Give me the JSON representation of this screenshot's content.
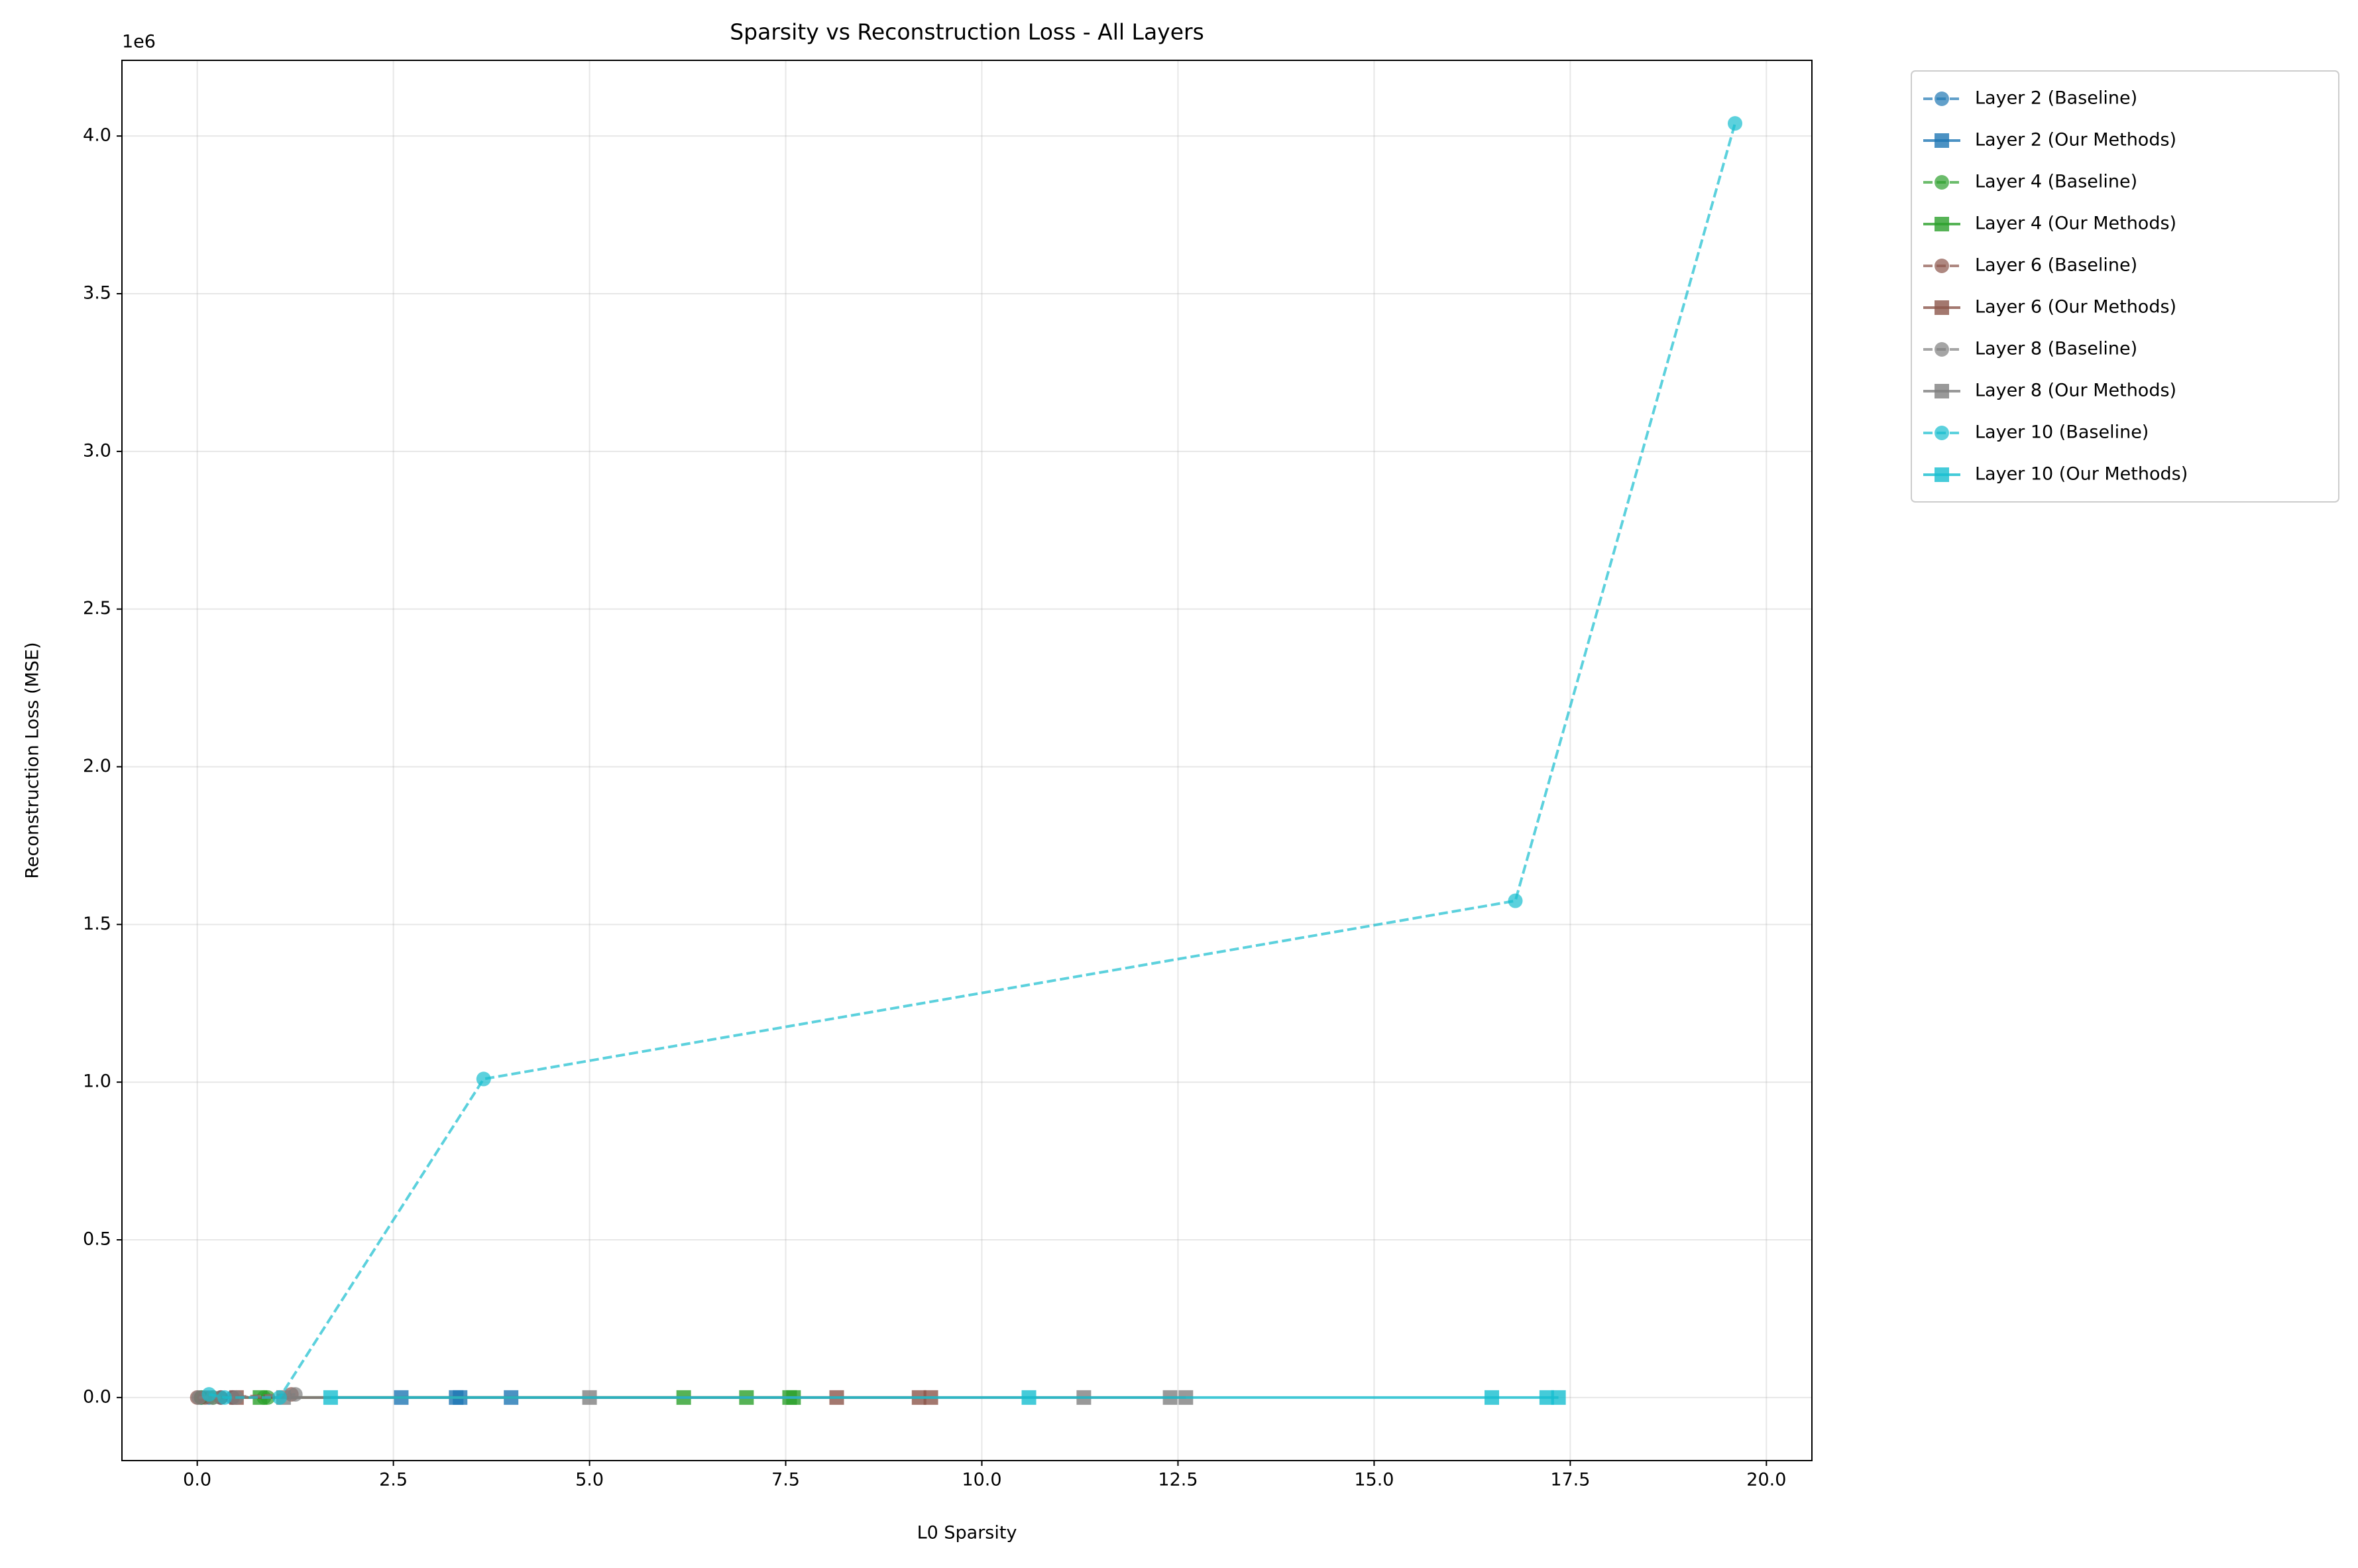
{
  "chart_data": {
    "type": "line",
    "title": "Sparsity vs Reconstruction Loss - All Layers",
    "x_label": "L0 Sparsity",
    "y_label": "Reconstruction Loss (MSE)",
    "y_offset_label": "1e6",
    "xlim": [
      -0.96,
      20.58
    ],
    "ylim": [
      -200000,
      4240000
    ],
    "xticks": [
      {
        "value": 0,
        "label": "0.0"
      },
      2.5,
      {
        "value": 5,
        "label": "5.0"
      },
      7.5,
      {
        "value": 10,
        "label": "10.0"
      },
      12.5,
      {
        "value": 15,
        "label": "15.0"
      },
      17.5,
      {
        "value": 20,
        "label": "20.0"
      }
    ],
    "yticks": [
      {
        "value": 0,
        "label": "0.0"
      },
      {
        "value": 500000,
        "label": "0.5"
      },
      {
        "value": 1000000,
        "label": "1.0"
      },
      {
        "value": 1500000,
        "label": "1.5"
      },
      {
        "value": 2000000,
        "label": "2.0"
      },
      {
        "value": 2500000,
        "label": "2.5"
      },
      {
        "value": 3000000,
        "label": "3.0"
      },
      {
        "value": 3500000,
        "label": "3.5"
      },
      {
        "value": 4000000,
        "label": "4.0"
      }
    ],
    "grid": true,
    "legend_position": "outside-upper-right",
    "series": [
      {
        "name": "Layer 2 (Baseline)",
        "color": "#1f77b4",
        "style": "dashed",
        "marker": "circle",
        "x": [
          0.05,
          0.15,
          0.3,
          0.45
        ],
        "values": [
          0,
          0,
          0,
          0
        ]
      },
      {
        "name": "Layer 2 (Our Methods)",
        "color": "#1f77b4",
        "style": "solid",
        "marker": "square",
        "x": [
          2.6,
          3.3,
          3.35,
          4.0
        ],
        "values": [
          0,
          0,
          0,
          0
        ]
      },
      {
        "name": "Layer 4 (Baseline)",
        "color": "#2ca02c",
        "style": "dashed",
        "marker": "circle",
        "x": [
          0.05,
          0.2,
          0.85,
          0.9
        ],
        "values": [
          0,
          0,
          0,
          0
        ]
      },
      {
        "name": "Layer 4 (Our Methods)",
        "color": "#2ca02c",
        "style": "solid",
        "marker": "square",
        "x": [
          0.8,
          6.2,
          7.0,
          7.55,
          7.6
        ],
        "values": [
          0,
          0,
          0,
          0,
          0
        ]
      },
      {
        "name": "Layer 6 (Baseline)",
        "color": "#8c564b",
        "style": "dashed",
        "marker": "circle",
        "x": [
          0.0,
          0.1,
          0.3,
          1.2
        ],
        "values": [
          0,
          0,
          0,
          10000
        ]
      },
      {
        "name": "Layer 6 (Our Methods)",
        "color": "#8c564b",
        "style": "solid",
        "marker": "square",
        "x": [
          0.5,
          8.15,
          9.2,
          9.35
        ],
        "values": [
          0,
          0,
          0,
          0
        ]
      },
      {
        "name": "Layer 8 (Baseline)",
        "color": "#7f7f7f",
        "style": "dashed",
        "marker": "circle",
        "x": [
          0.02,
          0.2,
          0.5,
          1.25
        ],
        "values": [
          0,
          0,
          0,
          10000
        ]
      },
      {
        "name": "Layer 8 (Our Methods)",
        "color": "#7f7f7f",
        "style": "solid",
        "marker": "square",
        "x": [
          1.1,
          5.0,
          11.3,
          12.4,
          12.6
        ],
        "values": [
          0,
          0,
          0,
          0,
          0
        ]
      },
      {
        "name": "Layer 10 (Baseline)",
        "color": "#17becf",
        "style": "dashed",
        "marker": "circle",
        "x": [
          0.15,
          0.35,
          1.05,
          3.65,
          16.8,
          19.6
        ],
        "values": [
          10000,
          0,
          0,
          1010000,
          1575000,
          4040000
        ]
      },
      {
        "name": "Layer 10 (Our Methods)",
        "color": "#17becf",
        "style": "solid",
        "marker": "square",
        "x": [
          1.7,
          10.6,
          16.5,
          17.2,
          17.35
        ],
        "values": [
          0,
          0,
          0,
          0,
          0
        ]
      }
    ]
  }
}
